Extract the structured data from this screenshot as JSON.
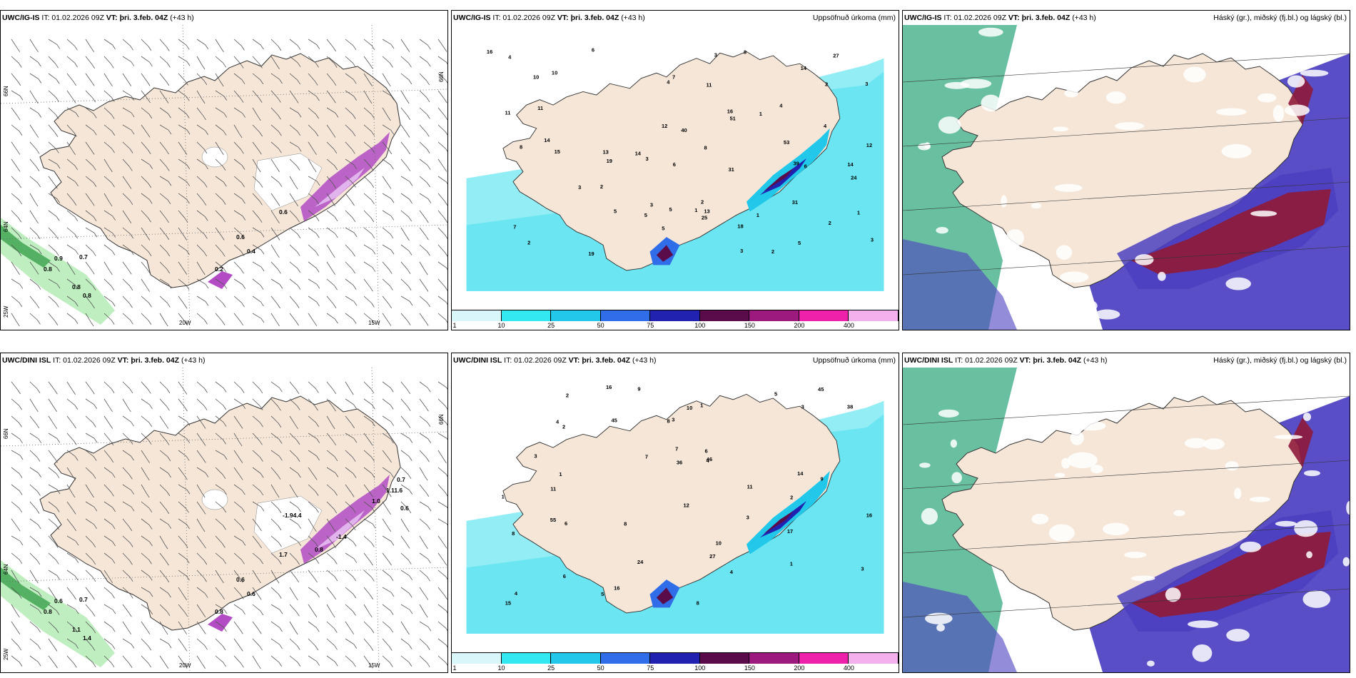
{
  "panels": [
    {
      "id": "tl",
      "model": "UWC/IG-IS",
      "it_label": "IT:",
      "it": "01.02.2026 09Z",
      "vt_label": "VT:",
      "vt": "þri. 3.feb. 04Z",
      "lead": "(+43 h)",
      "right": "",
      "kind": "wind",
      "coords": {
        "lat_left": "66N",
        "lat_right": "66N",
        "lat_mid": "64N",
        "lon_left": "25W",
        "lon_a": "20W",
        "lon_b": "15W"
      },
      "values": [
        "0.9",
        "0.7",
        "0.8",
        "0.8",
        "0.8",
        "0.6",
        "0.6",
        "0.4",
        "0.2"
      ]
    },
    {
      "id": "tm",
      "model": "UWC/IG-IS",
      "it_label": "IT:",
      "it": "01.02.2026 09Z",
      "vt_label": "VT:",
      "vt": "þri. 3.feb. 04Z",
      "lead": "(+43 h)",
      "right": "Uppsöfnuð úrkoma (mm)",
      "kind": "precip",
      "values": [
        "2",
        "1",
        "2",
        "3",
        "1",
        "1",
        "2",
        "3",
        "10",
        "18",
        "14",
        "13",
        "8",
        "1",
        "3",
        "2",
        "4",
        "2",
        "5",
        "6",
        "3",
        "3",
        "2",
        "4",
        "5",
        "4",
        "7",
        "24",
        "19",
        "25",
        "13",
        "12",
        "16",
        "31",
        "15",
        "16",
        "12",
        "19",
        "11",
        "14",
        "11",
        "8",
        "4",
        "3",
        "5",
        "27",
        "11",
        "5",
        "10",
        "7",
        "6",
        "5",
        "8",
        "6",
        "3",
        "14",
        "14",
        "31",
        "40",
        "39",
        "53",
        "51"
      ]
    },
    {
      "id": "tr",
      "model": "UWC/IG-IS",
      "it_label": "IT:",
      "it": "01.02.2026 09Z",
      "vt_label": "VT:",
      "vt": "þri. 3.feb. 04Z",
      "lead": "(+43 h)",
      "right": "Háský (gr.), miðský (fj.bl.) og lágský (bl.)",
      "kind": "cloud"
    },
    {
      "id": "bl",
      "model": "UWC/DINI ISL",
      "it_label": "IT:",
      "it": "01.02.2026 09Z",
      "vt_label": "VT:",
      "vt": "þri. 3.feb. 04Z",
      "lead": "(+43 h)",
      "right": "",
      "kind": "wind",
      "coords": {
        "lat_left": "66N",
        "lat_right": "66N",
        "lat_mid": "64N",
        "lon_left": "25W",
        "lon_a": "20W",
        "lon_b": "15W"
      },
      "values": [
        "0.6",
        "0.7",
        "0.8",
        "1.1",
        "1.4",
        "1.7",
        "0.6",
        "0.6",
        "0.8",
        "-1.4",
        "-1.94.4",
        "0.8",
        "1.0",
        "1.11.6",
        "0.7",
        "0.6"
      ]
    },
    {
      "id": "bm",
      "model": "UWC/DINI ISL",
      "it_label": "IT:",
      "it": "01.02.2026 09Z",
      "vt_label": "VT:",
      "vt": "þri. 3.feb. 04Z",
      "lead": "(+43 h)",
      "right": "Uppsöfnuð úrkoma (mm)",
      "kind": "precip",
      "values": [
        "1",
        "6",
        "1",
        "1",
        "2",
        "3",
        "3",
        "4",
        "14",
        "9",
        "11",
        "4",
        "1",
        "3",
        "2",
        "3",
        "45",
        "10",
        "12",
        "15",
        "24",
        "16",
        "16",
        "10",
        "6",
        "7",
        "5",
        "8",
        "9",
        "8",
        "16",
        "17",
        "55",
        "45",
        "46",
        "38",
        "36",
        "27",
        "11",
        "4",
        "3",
        "5",
        "7",
        "6",
        "8",
        "8",
        "2",
        "4"
      ]
    },
    {
      "id": "br",
      "model": "UWC/DINI ISL",
      "it_label": "IT:",
      "it": "01.02.2026 09Z",
      "vt_label": "VT:",
      "vt": "þri. 3.feb. 04Z",
      "lead": "(+43 h)",
      "right": "Háský (gr.), miðský (fj.bl.) og lágský (bl.)",
      "kind": "cloud"
    }
  ],
  "colorbar": {
    "labels": [
      "1",
      "10",
      "25",
      "50",
      "75",
      "100",
      "150",
      "200",
      "400"
    ],
    "colors": [
      "#d9f7fb",
      "#33e8f0",
      "#22c8ea",
      "#2f6ee8",
      "#2222b0",
      "#5a0c4a",
      "#9c1a7e",
      "#ee22aa",
      "#f4b0ec"
    ]
  },
  "colors": {
    "land": "#f5e6d8",
    "wind_green": "#3aa04a",
    "precip_cyan": "#6fe7f2",
    "cloud_blue": "#4b3fc0",
    "cloud_red": "#8e1a3a",
    "cloud_green": "#4fb58f"
  }
}
